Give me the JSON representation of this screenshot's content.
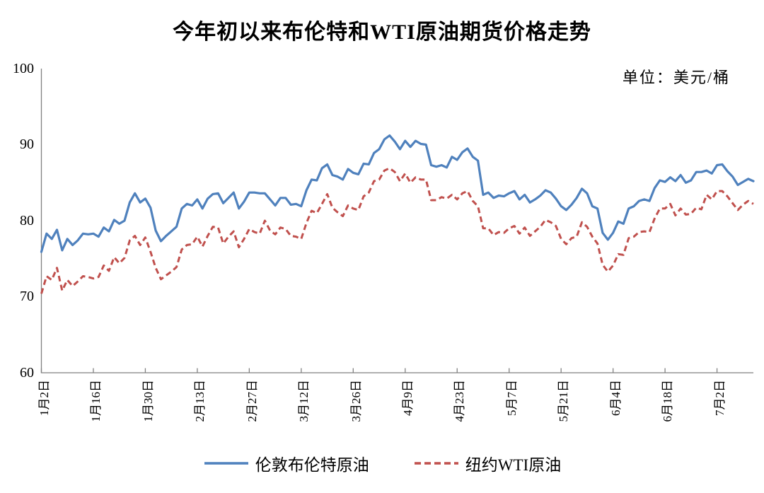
{
  "title": "今年初以来布伦特和WTI原油期货价格走势",
  "unit_label": "单位：美元/桶",
  "legend": {
    "items": [
      {
        "label": "伦敦布伦特原油",
        "color": "#4f81bd",
        "style": "solid"
      },
      {
        "label": "纽约WTI原油",
        "color": "#c0504d",
        "style": "dashed"
      }
    ]
  },
  "colors": {
    "brent_line": "#4f81bd",
    "wti_line": "#c0504d",
    "axis": "#808080",
    "text": "#000000",
    "background": "#ffffff"
  },
  "chart_data": {
    "type": "line",
    "title": "今年初以来布伦特和WTI原油期货价格走势",
    "subtitle": "单位：美元/桶",
    "xlabel": "",
    "ylabel": "",
    "ylim": [
      60,
      100
    ],
    "y_ticks": [
      "100",
      "90",
      "80",
      "70",
      "60"
    ],
    "x_tick_labels": [
      "1月2日",
      "1月16日",
      "1月30日",
      "2月13日",
      "2月27日",
      "3月12日",
      "3月26日",
      "4月9日",
      "4月23日",
      "5月7日",
      "5月21日",
      "6月4日",
      "6月18日",
      "7月2日"
    ],
    "x_tick_every_n_points": 10,
    "grid": false,
    "legend_position": "bottom",
    "series": [
      {
        "name": "伦敦布伦特原油",
        "color": "#4f81bd",
        "dash": "solid",
        "values": [
          75.9,
          78.3,
          77.6,
          78.8,
          76.1,
          77.6,
          76.8,
          77.4,
          78.3,
          78.2,
          78.3,
          77.9,
          79.1,
          78.6,
          80.1,
          79.6,
          80.0,
          82.4,
          83.6,
          82.4,
          82.9,
          81.7,
          78.7,
          77.3,
          78.0,
          78.6,
          79.2,
          81.6,
          82.2,
          82.0,
          82.8,
          81.6,
          82.9,
          83.5,
          83.6,
          82.3,
          83.0,
          83.7,
          81.6,
          82.5,
          83.7,
          83.7,
          83.6,
          83.6,
          82.8,
          82.0,
          83.0,
          83.0,
          82.1,
          82.2,
          81.9,
          84.0,
          85.4,
          85.3,
          86.9,
          87.4,
          86.0,
          85.8,
          85.4,
          86.8,
          86.3,
          86.1,
          87.5,
          87.4,
          88.9,
          89.4,
          90.7,
          91.2,
          90.4,
          89.4,
          90.5,
          89.7,
          90.5,
          90.1,
          90.0,
          87.3,
          87.1,
          87.3,
          87.0,
          88.4,
          88.0,
          89.0,
          89.5,
          88.4,
          87.9,
          83.4,
          83.7,
          83.0,
          83.3,
          83.2,
          83.6,
          83.9,
          82.8,
          83.4,
          82.4,
          82.8,
          83.3,
          84.0,
          83.7,
          82.9,
          81.9,
          81.4,
          82.1,
          83.0,
          84.2,
          83.6,
          81.9,
          81.6,
          78.4,
          77.5,
          78.4,
          79.9,
          79.6,
          81.6,
          81.9,
          82.6,
          82.8,
          82.6,
          84.3,
          85.3,
          85.1,
          85.7,
          85.2,
          86.0,
          85.0,
          85.3,
          86.4,
          86.4,
          86.6,
          86.2,
          87.3,
          87.4,
          86.5,
          85.8,
          84.7,
          85.1,
          85.5,
          85.2
        ]
      },
      {
        "name": "纽约WTI原油",
        "color": "#c0504d",
        "dash": "dashed",
        "values": [
          70.4,
          72.7,
          72.2,
          73.8,
          70.8,
          72.2,
          71.4,
          72.0,
          72.7,
          72.6,
          72.4,
          72.6,
          74.1,
          73.4,
          75.2,
          74.4,
          75.1,
          77.4,
          78.0,
          76.8,
          77.8,
          75.9,
          73.8,
          72.3,
          72.8,
          73.3,
          73.9,
          76.2,
          76.8,
          76.9,
          77.9,
          76.6,
          78.0,
          79.2,
          79.1,
          77.0,
          77.9,
          78.6,
          76.5,
          77.6,
          78.9,
          78.5,
          78.3,
          80.0,
          78.7,
          78.2,
          79.1,
          78.9,
          78.0,
          77.9,
          77.6,
          79.7,
          81.3,
          81.0,
          82.2,
          83.5,
          81.7,
          81.1,
          80.6,
          82.0,
          81.6,
          81.4,
          83.2,
          83.7,
          85.2,
          85.4,
          86.6,
          86.9,
          86.4,
          85.2,
          86.2,
          85.0,
          85.7,
          85.4,
          85.4,
          82.7,
          82.7,
          83.1,
          82.9,
          83.4,
          82.8,
          83.6,
          83.9,
          82.6,
          81.9,
          79.0,
          79.0,
          78.1,
          78.5,
          78.4,
          79.0,
          79.3,
          78.3,
          79.1,
          78.0,
          78.6,
          79.2,
          80.1,
          79.8,
          79.3,
          77.6,
          76.9,
          77.7,
          77.9,
          79.8,
          79.2,
          77.9,
          77.0,
          74.2,
          73.3,
          74.1,
          75.6,
          75.5,
          77.7,
          77.9,
          78.5,
          78.6,
          78.5,
          80.3,
          81.6,
          81.6,
          82.2,
          80.7,
          81.6,
          80.8,
          80.9,
          81.7,
          81.5,
          83.4,
          82.8,
          83.9,
          83.9,
          83.2,
          82.3,
          81.4,
          82.1,
          82.6,
          82.2
        ]
      }
    ]
  }
}
